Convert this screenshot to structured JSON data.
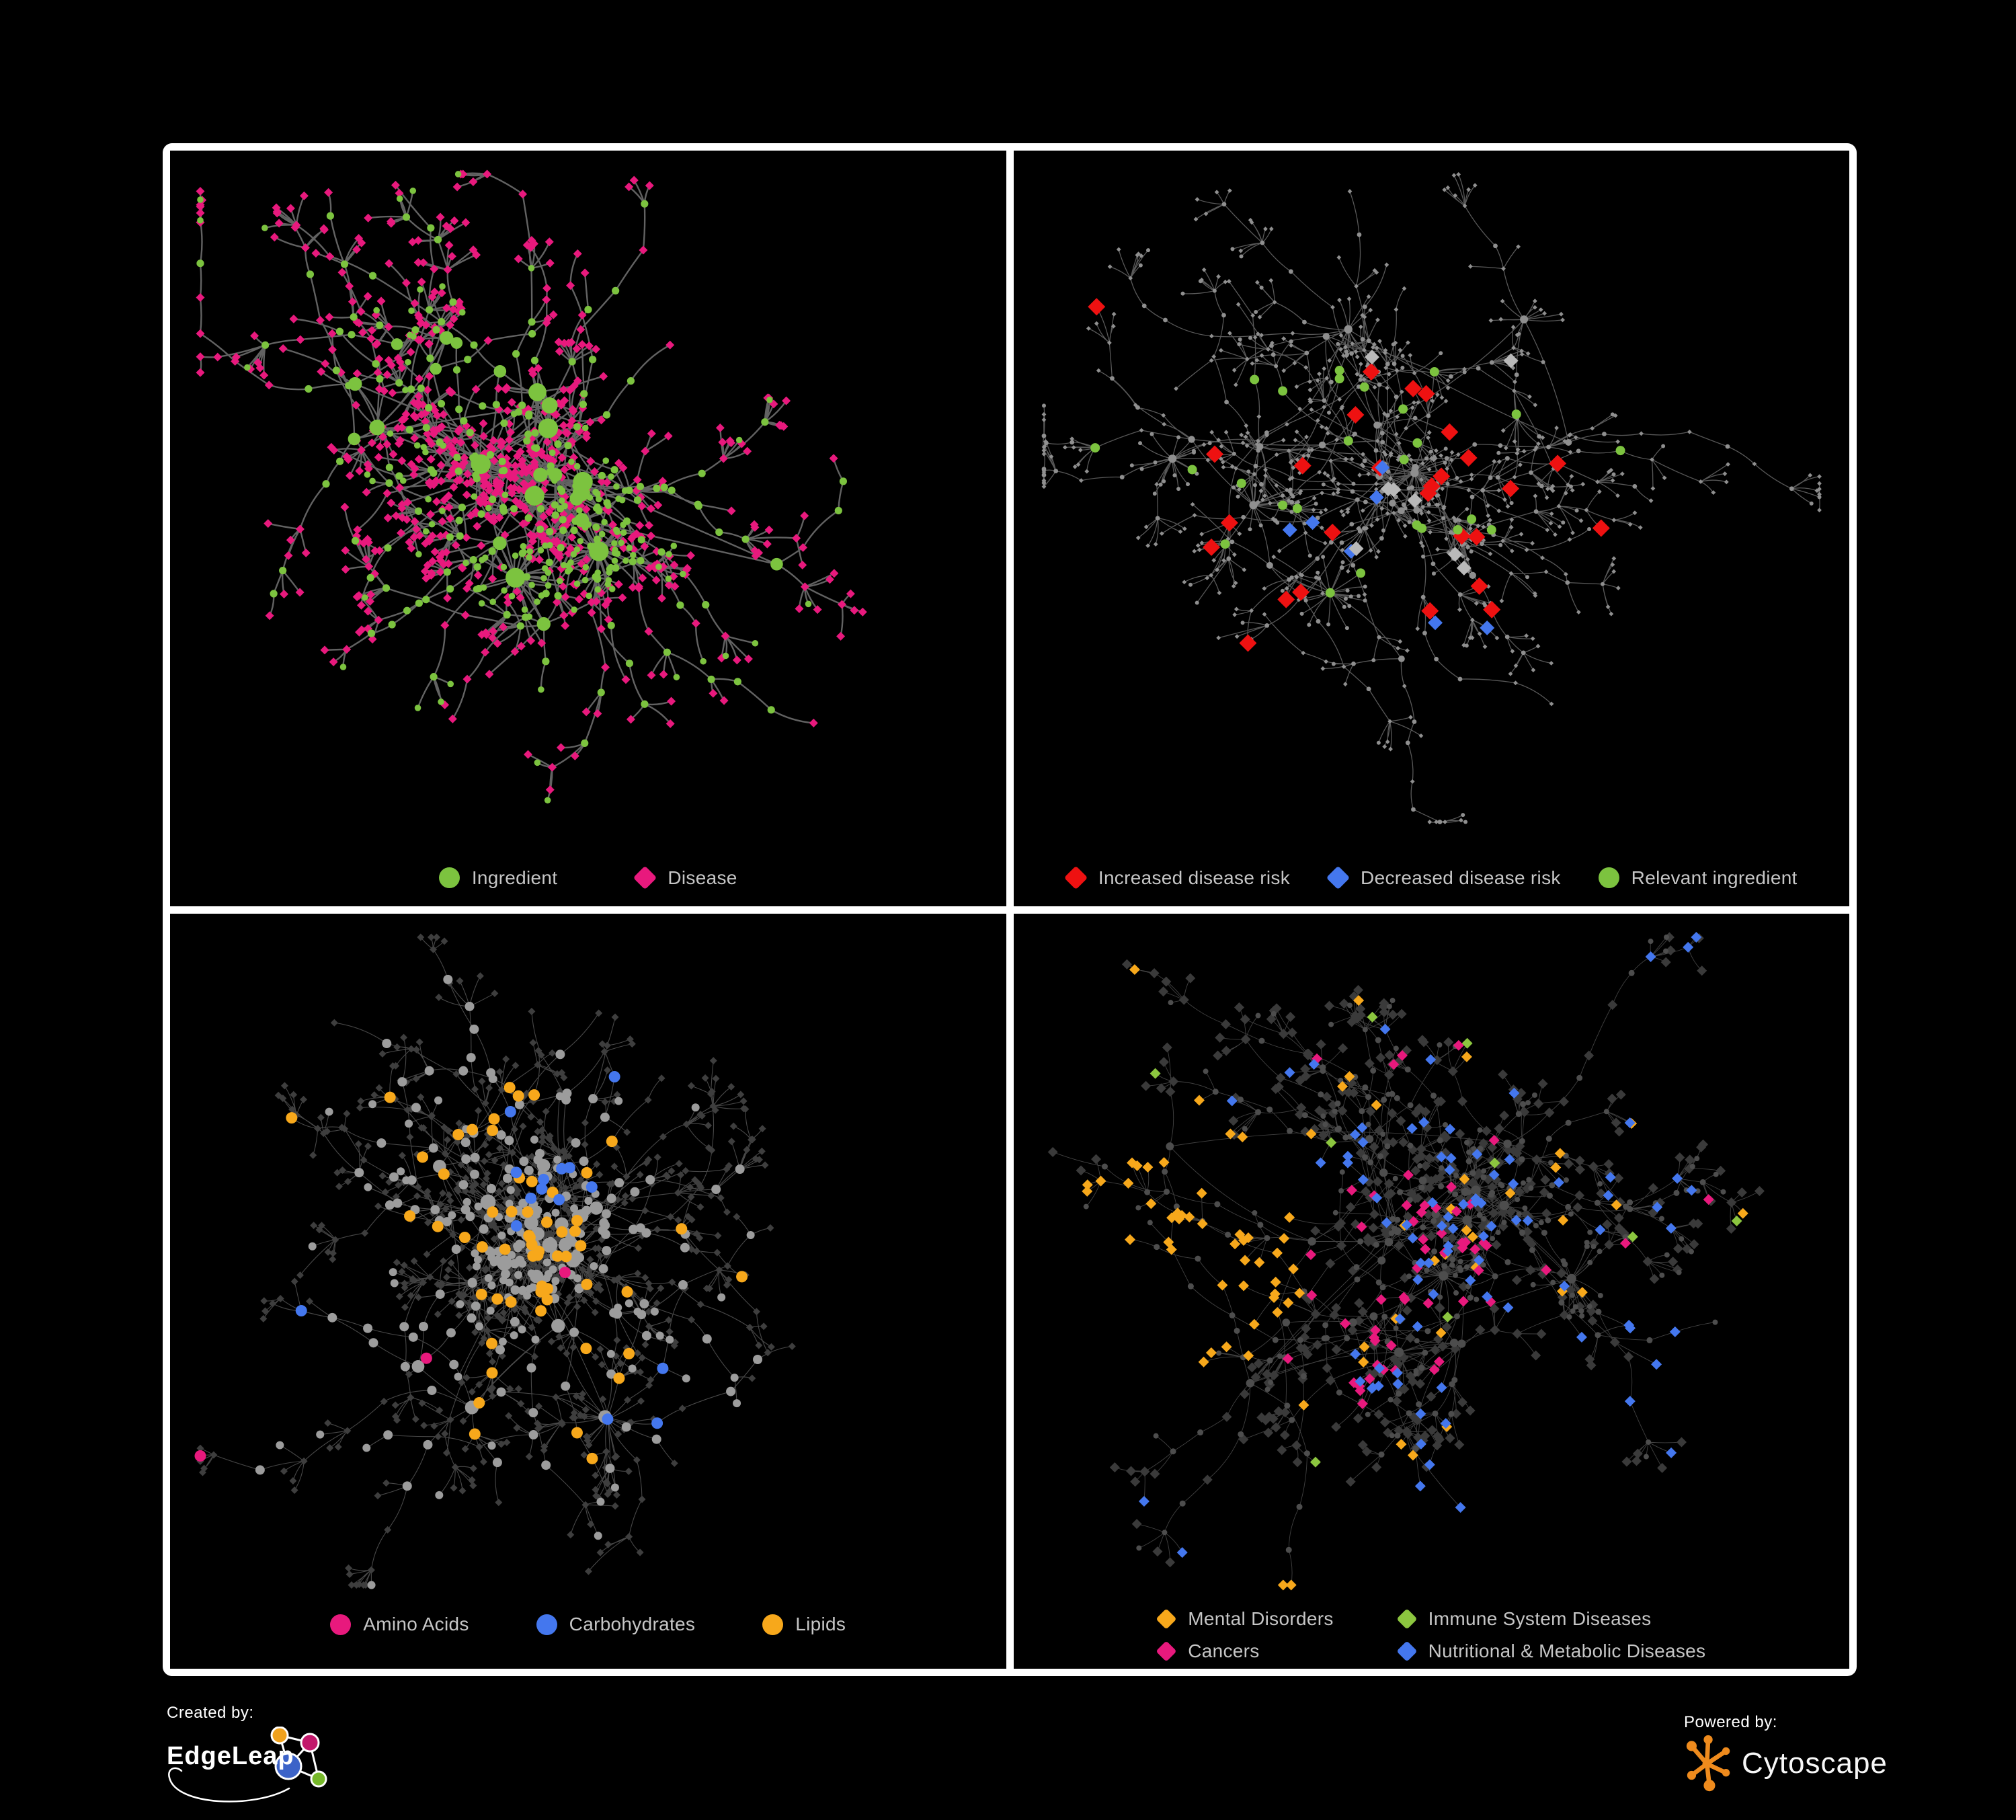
{
  "page": {
    "background": "#000000",
    "frame_color": "#ffffff",
    "legend_text_color": "#c6c6c6"
  },
  "footer": {
    "created_by_label": "Created by:",
    "edgeleap_name": "EdgeLeap",
    "powered_by_label": "Powered by:",
    "cytoscape_name": "Cytoscape",
    "cytoscape_orange": "#ef8b1d",
    "edgeleap_colors": {
      "orange": "#f0a11c",
      "magenta": "#c2186b",
      "blue": "#3c63c8",
      "green": "#76b82a"
    }
  },
  "chart_data": {
    "type": "network",
    "description": "Four node-link views of the same ingredient-disease association network rendered with Cytoscape. Circles are ingredients, diamonds are diseases. Each panel recolors the network: (1) node types, (2) disease-risk associations, (3) ingredient classes, (4) disease categories.",
    "panels": [
      {
        "id": "ingredient-disease-network",
        "seed": 7,
        "approx_nodes": 650,
        "legend": [
          {
            "shape": "circle",
            "color": "#7cc33f",
            "label": "Ingredient"
          },
          {
            "shape": "diamond",
            "color": "#e8197d",
            "label": "Disease"
          }
        ],
        "style": {
          "edge_color": "#6a6a6a",
          "edge_width": 2.4,
          "edge_opacity": 0.92,
          "circle_color": "#7cc33f",
          "circle_r_hub": 7.5,
          "circle_r_deg": 0.45,
          "circle_r_mid": 5.6,
          "circle_r_leaf": 4.8,
          "diamond_color": "#e8197d",
          "diamond_size": 6.5
        },
        "highlights": []
      },
      {
        "id": "disease-risk-network",
        "seed": 13,
        "approx_nodes": 650,
        "legend": [
          {
            "shape": "diamond",
            "color": "#ee1111",
            "label": "Increased disease risk"
          },
          {
            "shape": "diamond",
            "color": "#4477ee",
            "label": "Decreased disease risk"
          },
          {
            "shape": "circle",
            "color": "#7cc33f",
            "label": "Relevant ingredient"
          }
        ],
        "style": {
          "edge_color": "#5d5d5d",
          "edge_width": 1.3,
          "edge_opacity": 0.95,
          "circle_color": "#8f8f8f",
          "circle_r_hub": 4.6,
          "circle_r_deg": 0.1,
          "circle_r_mid": 3.4,
          "circle_r_leaf": 3.0,
          "diamond_color": "#8f8f8f",
          "diamond_size": 3.4
        },
        "highlights": [
          {
            "name": "increased-risk-disease",
            "target": "diamond",
            "shape": "diamond",
            "color": "#ee1111",
            "size": 13,
            "count": 27,
            "cx": 0.5,
            "cy": 0.45,
            "r": 0.16,
            "scatter": 0.3
          },
          {
            "name": "decreased-risk-disease",
            "target": "diamond",
            "shape": "diamond",
            "color": "#4477ee",
            "size": 11,
            "count": 7,
            "cx": 0.36,
            "cy": 0.48,
            "r": 0.09,
            "scatter": 0.45
          },
          {
            "name": "neutral-highlight-disease",
            "target": "diamond",
            "shape": "diamond",
            "color": "#b9b9b9",
            "size": 11,
            "count": 8,
            "cx": 0.52,
            "cy": 0.52,
            "r": 0.2,
            "scatter": 0.3
          },
          {
            "name": "relevant-ingredient",
            "target": "circle",
            "shape": "circle",
            "color": "#7cc33f",
            "size": 7,
            "count": 25,
            "cx": 0.44,
            "cy": 0.4,
            "r": 0.2,
            "scatter": 0.15
          }
        ]
      },
      {
        "id": "ingredient-class-network",
        "seed": 29,
        "approx_nodes": 650,
        "legend": [
          {
            "shape": "circle",
            "color": "#e8197d",
            "label": "Amino Acids"
          },
          {
            "shape": "circle",
            "color": "#4477ee",
            "label": "Carbohydrates"
          },
          {
            "shape": "circle",
            "color": "#f7a81b",
            "label": "Lipids"
          }
        ],
        "style": {
          "edge_color": "#8f8f8f",
          "edge_width": 1.1,
          "edge_opacity": 0.5,
          "circle_color": "#9c9c9c",
          "circle_r_hub": 9,
          "circle_r_deg": 0.15,
          "circle_r_mid": 7,
          "circle_r_leaf": 6,
          "diamond_color": "#3e3e3e",
          "diamond_size": 5.5
        },
        "highlights": [
          {
            "name": "lipids",
            "target": "circle",
            "shape": "circle",
            "color": "#f7a81b",
            "size": 8.5,
            "count": 58,
            "cx": 0.42,
            "cy": 0.33,
            "r": 0.18,
            "scatter": 0.22
          },
          {
            "name": "carbohydrates",
            "target": "circle",
            "shape": "circle",
            "color": "#4477ee",
            "size": 8.5,
            "count": 15,
            "cx": 0.46,
            "cy": 0.28,
            "r": 0.1,
            "scatter": 0.3
          },
          {
            "name": "amino-acids",
            "target": "circle",
            "shape": "circle",
            "color": "#e8197d",
            "size": 8.5,
            "count": 14,
            "cx": 0.5,
            "cy": 0.52,
            "r": 0.45,
            "scatter": 0.85
          }
        ]
      },
      {
        "id": "disease-category-network",
        "seed": 41,
        "approx_nodes": 650,
        "legend": [
          {
            "shape": "diamond",
            "color": "#f7a81b",
            "label": "Mental Disorders"
          },
          {
            "shape": "diamond",
            "color": "#8cc63f",
            "label": "Immune System Diseases"
          },
          {
            "shape": "diamond",
            "color": "#e8197d",
            "label": "Cancers"
          },
          {
            "shape": "diamond",
            "color": "#4477ee",
            "label": "Nutritional & Metabolic Diseases"
          }
        ],
        "style": {
          "edge_color": "#9a9a9a",
          "edge_width": 0.9,
          "edge_opacity": 0.42,
          "circle_color": "#4d4d4d",
          "circle_r_hub": 5.5,
          "circle_r_deg": 0.1,
          "circle_r_mid": 4.5,
          "circle_r_leaf": 4.0,
          "diamond_color": "#3a3a3a",
          "diamond_size": 7.5
        },
        "highlights": [
          {
            "name": "mental-disorders",
            "target": "diamond",
            "shape": "diamond",
            "color": "#f7a81b",
            "size": 8,
            "count": 80,
            "cx": 0.2,
            "cy": 0.45,
            "r": 0.15,
            "scatter": 0.1
          },
          {
            "name": "cancers",
            "target": "diamond",
            "shape": "diamond",
            "color": "#e8197d",
            "size": 8,
            "count": 56,
            "cx": 0.43,
            "cy": 0.5,
            "r": 0.15,
            "scatter": 0.18
          },
          {
            "name": "nutritional-metabolic-diseases",
            "target": "diamond",
            "shape": "diamond",
            "color": "#4477ee",
            "size": 8,
            "count": 88,
            "cx": 0.6,
            "cy": 0.57,
            "r": 0.2,
            "scatter": 0.45
          },
          {
            "name": "immune-system-diseases",
            "target": "diamond",
            "shape": "diamond",
            "color": "#8cc63f",
            "size": 8,
            "count": 9,
            "cx": 0.45,
            "cy": 0.42,
            "r": 0.25,
            "scatter": 0.6
          }
        ]
      }
    ]
  }
}
